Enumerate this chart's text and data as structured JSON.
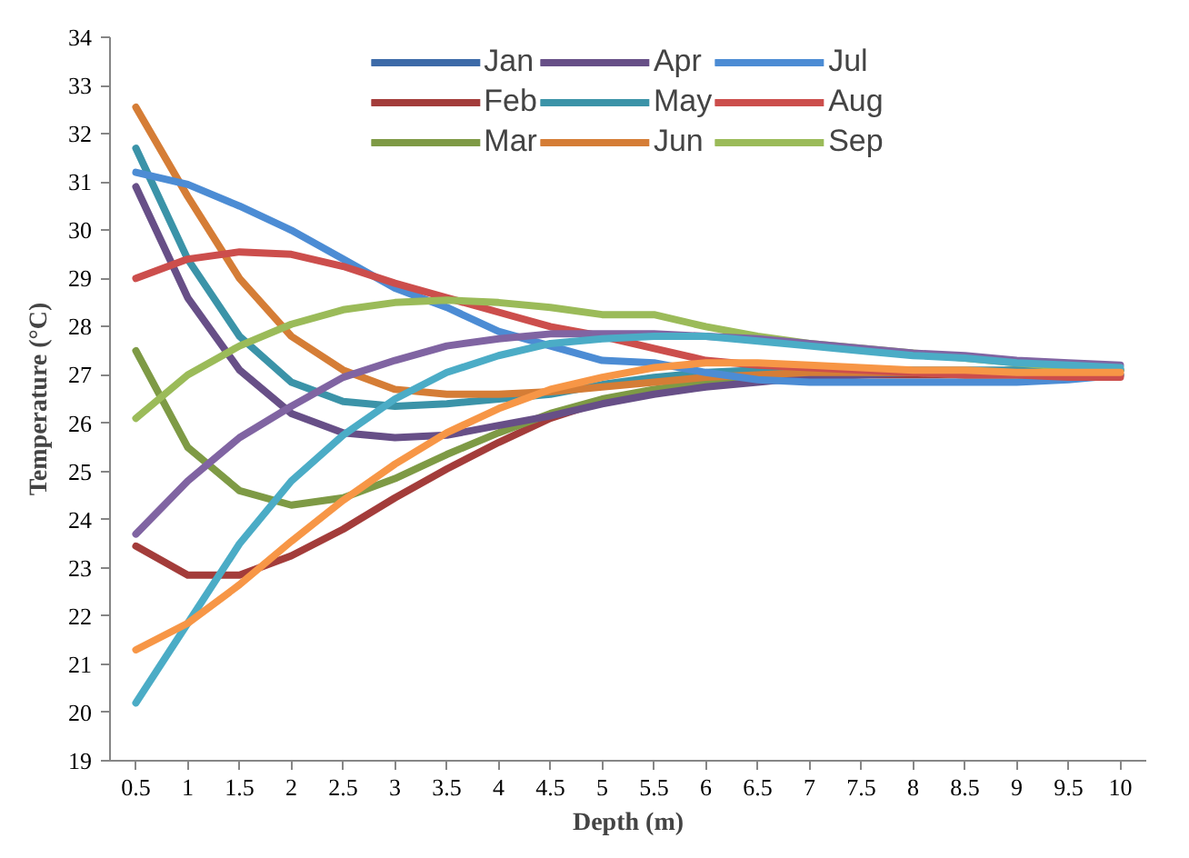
{
  "chart_data": {
    "type": "line",
    "xlabel": "Depth (m)",
    "ylabel": "Temperature (°C)",
    "categories": [
      "0.5",
      "1",
      "1.5",
      "2",
      "2.5",
      "3",
      "3.5",
      "4",
      "4.5",
      "5",
      "5.5",
      "6",
      "6.5",
      "7",
      "7.5",
      "8",
      "8.5",
      "9",
      "9.5",
      "10"
    ],
    "ylim": [
      19,
      34
    ],
    "yticks": [
      19,
      20,
      21,
      22,
      23,
      24,
      25,
      26,
      27,
      28,
      29,
      30,
      31,
      32,
      33,
      34
    ],
    "grid": false,
    "legend": "top",
    "line_style": "solid",
    "marker": "none",
    "series": [
      {
        "name": "Jan",
        "color": "#3c6aa8",
        "values": [
          null,
          null,
          null,
          null,
          null,
          null,
          null,
          null,
          null,
          null,
          null,
          null,
          null,
          null,
          null,
          null,
          null,
          null,
          null,
          null
        ]
      },
      {
        "name": "Feb",
        "color": "#a33c3a",
        "values": [
          23.45,
          22.85,
          22.85,
          23.25,
          23.8,
          24.45,
          25.05,
          25.6,
          26.1,
          26.45,
          26.65,
          26.8,
          26.9,
          26.95,
          27.0,
          27.0,
          27.0,
          27.0,
          27.0,
          27.0
        ]
      },
      {
        "name": "Mar",
        "color": "#7e9a45",
        "values": [
          27.5,
          25.5,
          24.6,
          24.3,
          24.45,
          24.85,
          25.35,
          25.8,
          26.2,
          26.5,
          26.7,
          26.85,
          26.95,
          27.0,
          27.05,
          27.05,
          27.05,
          27.1,
          27.1,
          27.1
        ]
      },
      {
        "name": "Apr",
        "color": "#674f87",
        "values": [
          30.9,
          28.6,
          27.1,
          26.2,
          25.8,
          25.7,
          25.75,
          25.95,
          26.15,
          26.4,
          26.6,
          26.75,
          26.85,
          26.95,
          27.0,
          27.05,
          27.05,
          27.05,
          27.1,
          27.1
        ]
      },
      {
        "name": "May",
        "color": "#3b93a8",
        "values": [
          31.7,
          29.4,
          27.8,
          26.85,
          26.45,
          26.35,
          26.4,
          26.5,
          26.6,
          26.8,
          26.95,
          27.05,
          27.1,
          27.1,
          27.1,
          27.1,
          27.1,
          27.1,
          27.1,
          27.1
        ]
      },
      {
        "name": "Jun",
        "color": "#d57d36",
        "values": [
          32.55,
          30.7,
          29.0,
          27.8,
          27.1,
          26.7,
          26.6,
          26.6,
          26.65,
          26.75,
          26.85,
          26.95,
          27.0,
          27.05,
          27.05,
          27.05,
          27.0,
          27.0,
          27.0,
          27.0
        ]
      },
      {
        "name": "Jul",
        "color": "#4c8cd4",
        "values": [
          31.2,
          30.95,
          30.5,
          30.0,
          29.4,
          28.8,
          28.4,
          27.9,
          27.6,
          27.3,
          27.25,
          27.05,
          26.9,
          26.85,
          26.85,
          26.85,
          26.85,
          26.85,
          26.9,
          27.0
        ]
      },
      {
        "name": "Aug",
        "color": "#cc4e4c",
        "values": [
          29.0,
          29.4,
          29.55,
          29.5,
          29.25,
          28.9,
          28.6,
          28.3,
          28.0,
          27.8,
          27.55,
          27.3,
          27.2,
          27.15,
          27.1,
          27.05,
          27.0,
          27.0,
          26.95,
          26.95
        ]
      },
      {
        "name": "Sep",
        "color": "#9bbb59",
        "values": [
          26.1,
          27.0,
          27.6,
          28.05,
          28.35,
          28.5,
          28.55,
          28.5,
          28.4,
          28.25,
          28.25,
          28.0,
          27.8,
          27.65,
          27.55,
          27.45,
          27.35,
          27.25,
          27.15,
          27.1
        ]
      },
      {
        "color": "#8064a2",
        "values": [
          23.7,
          24.8,
          25.7,
          26.35,
          26.95,
          27.3,
          27.6,
          27.75,
          27.85,
          27.85,
          27.85,
          27.8,
          27.75,
          27.65,
          27.55,
          27.45,
          27.4,
          27.3,
          27.25,
          27.2
        ]
      },
      {
        "color": "#4bacc6",
        "values": [
          20.2,
          21.85,
          23.5,
          24.8,
          25.75,
          26.5,
          27.05,
          27.4,
          27.65,
          27.75,
          27.8,
          27.8,
          27.7,
          27.6,
          27.5,
          27.4,
          27.35,
          27.25,
          27.2,
          27.15
        ]
      },
      {
        "color": "#f79646",
        "values": [
          21.3,
          21.85,
          22.65,
          23.55,
          24.4,
          25.15,
          25.8,
          26.3,
          26.7,
          26.95,
          27.15,
          27.25,
          27.25,
          27.2,
          27.15,
          27.1,
          27.1,
          27.05,
          27.05,
          27.05
        ]
      }
    ]
  }
}
